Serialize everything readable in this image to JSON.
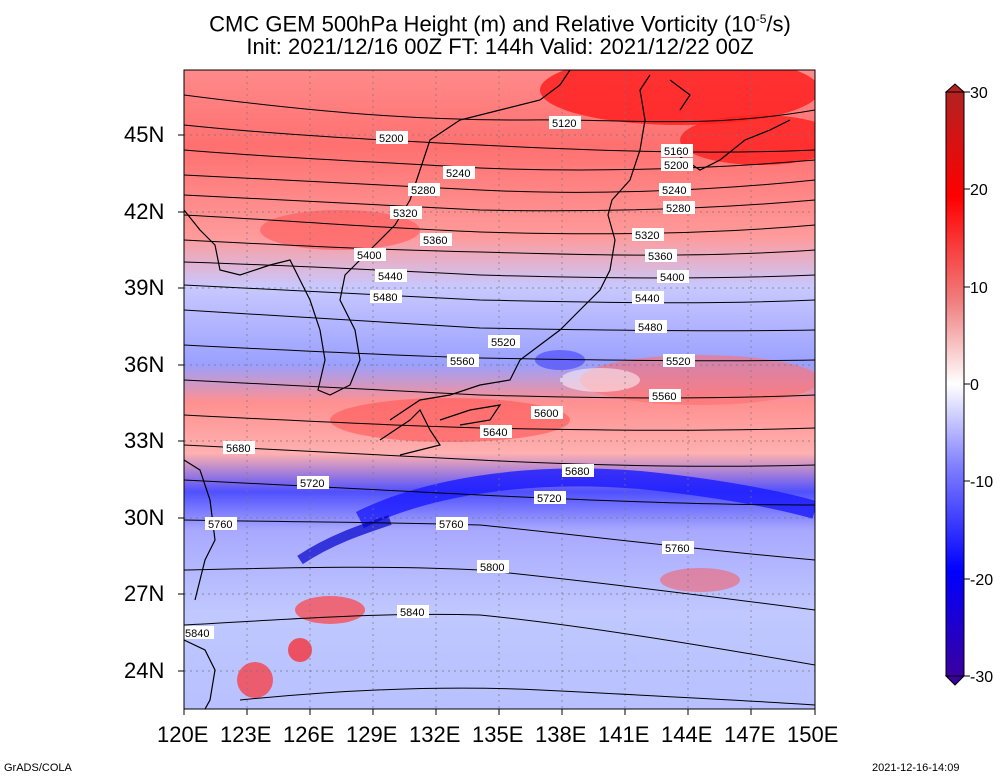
{
  "title_line1": "CMC GEM 500hPa Height (m) and Relative Vorticity (10",
  "title_exp": "-5",
  "title_line1_end": "/s)",
  "title_line2": "Init: 2021/12/16 00Z  FT: 144h  Valid: 2021/12/22 00Z",
  "lat_labels": [
    "45N",
    "42N",
    "39N",
    "36N",
    "33N",
    "30N",
    "27N",
    "24N"
  ],
  "lon_labels": [
    "120E",
    "123E",
    "126E",
    "129E",
    "132E",
    "135E",
    "138E",
    "141E",
    "144E",
    "147E",
    "150E"
  ],
  "colorbar": {
    "ticks": [
      "30",
      "20",
      "10",
      "0",
      "-10",
      "-20",
      "-30"
    ],
    "colors": {
      "pos_max": "#b22222",
      "pos_mid": "#ff0000",
      "pos_low": "#f08080",
      "zero": "#ffffff",
      "neg_low": "#8080ff",
      "neg_mid": "#0000ff",
      "neg_max": "#3a00a0"
    }
  },
  "contours": [
    {
      "label": "5120"
    },
    {
      "label": "5160"
    },
    {
      "label": "5200"
    },
    {
      "label": "5240"
    },
    {
      "label": "5280"
    },
    {
      "label": "5320"
    },
    {
      "label": "5360"
    },
    {
      "label": "5400"
    },
    {
      "label": "5440"
    },
    {
      "label": "5480"
    },
    {
      "label": "5520"
    },
    {
      "label": "5560"
    },
    {
      "label": "5600"
    },
    {
      "label": "5640"
    },
    {
      "label": "5680"
    },
    {
      "label": "5720"
    },
    {
      "label": "5760"
    },
    {
      "label": "5800"
    },
    {
      "label": "5840"
    }
  ],
  "footer_left": "GrADS/COLA",
  "footer_right": "2021-12-16-14:09"
}
